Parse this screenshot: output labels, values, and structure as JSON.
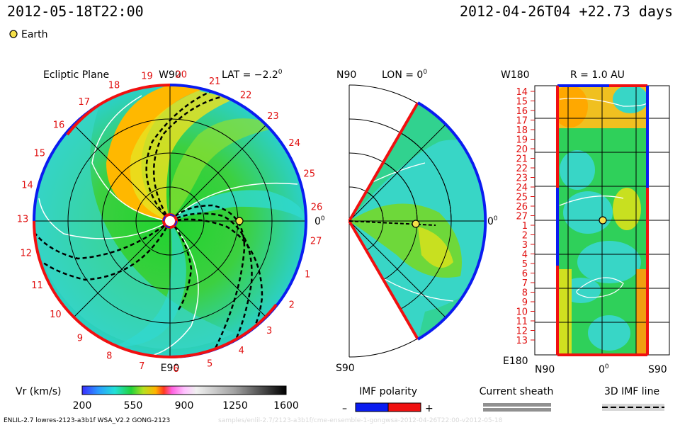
{
  "header": {
    "timestamp": "2012-05-18T22:00",
    "reference": "2012-04-26T04 +22.73 days"
  },
  "legend": {
    "earth_label": "Earth",
    "earth_color": "#f5e04a"
  },
  "panels": {
    "ecliptic": {
      "title": "Ecliptic Plane",
      "top_label": "W90",
      "bottom_label": "E90",
      "right_label": "0",
      "right_label_sup": "0",
      "lat_label": "LAT = −2.2",
      "lat_sup": "0",
      "day_labels": [
        "19",
        "20",
        "21",
        "22",
        "23",
        "24",
        "25",
        "26",
        "27",
        "1",
        "2",
        "3",
        "4",
        "5",
        "6",
        "7",
        "8",
        "9",
        "10",
        "11",
        "12",
        "13",
        "14",
        "15",
        "16",
        "17",
        "18"
      ]
    },
    "meridional": {
      "top_label": "N90",
      "bottom_label": "S90",
      "lon_label": "LON = 0",
      "lon_sup": "0",
      "right_label": "0",
      "right_label_sup": "0"
    },
    "radial": {
      "title": "R = 1.0 AU",
      "top_left_label": "W180",
      "bottom_left_label": "E180",
      "x_labels": [
        "N90",
        "0",
        "S90"
      ],
      "x_label_sup": "0",
      "day_labels": [
        "14",
        "15",
        "16",
        "17",
        "18",
        "19",
        "20",
        "21",
        "22",
        "23",
        "24",
        "25",
        "26",
        "27",
        "1",
        "2",
        "3",
        "4",
        "5",
        "6",
        "7",
        "8",
        "9",
        "10",
        "11",
        "12",
        "13"
      ]
    }
  },
  "colorbar": {
    "label": "Vr (km/s)",
    "ticks": [
      "200",
      "550",
      "900",
      "1250",
      "1600"
    ],
    "min": 200,
    "max": 1600
  },
  "imf": {
    "label": "IMF polarity",
    "minus": "–",
    "plus": "+",
    "neg_color": "#0a1cf0",
    "pos_color": "#f01010"
  },
  "current_sheath": {
    "label": "Current sheath"
  },
  "imf_line": {
    "label": "3D IMF line"
  },
  "footer": {
    "model": "ENLIL-2.7 lowres-2123-a3b1f WSA_V2.2 GONG-2123",
    "path": "samples/enlil-2.7/2123-a3b1f/cme-ensemble-1-gongwsa-2012-04-26T22:00-v2012-05-18"
  }
}
